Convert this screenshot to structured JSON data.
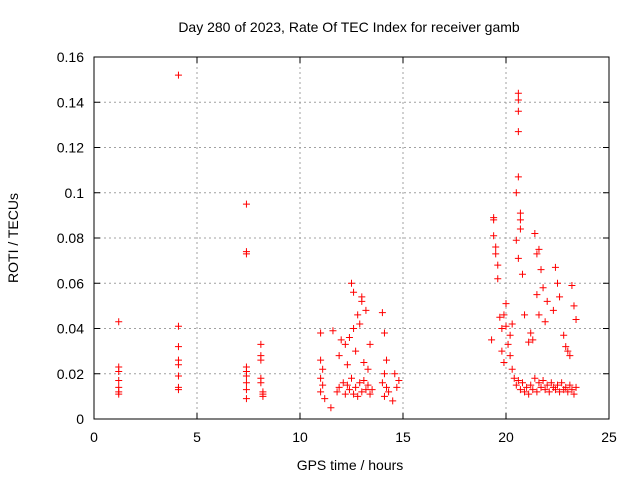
{
  "chart_data": {
    "type": "scatter",
    "title": "Day 280 of 2023, Rate Of TEC Index for receiver gamb",
    "xlabel": "GPS time / hours",
    "ylabel": "ROTI / TECUs",
    "xlim": [
      0,
      25
    ],
    "ylim": [
      0,
      0.16
    ],
    "x_ticks": [
      0,
      5,
      10,
      15,
      20,
      25
    ],
    "y_ticks": [
      0,
      0.02,
      0.04,
      0.06,
      0.08,
      0.1,
      0.12,
      0.14,
      0.16
    ],
    "x_tick_labels": [
      "0",
      "5",
      "10",
      "15",
      "20",
      "25"
    ],
    "y_tick_labels": [
      "0",
      "0.02",
      "0.04",
      "0.06",
      "0.08",
      "0.1",
      "0.12",
      "0.14",
      "0.16"
    ],
    "grid": true,
    "legend": "none",
    "marker": "+",
    "marker_color": "#ff0000",
    "series": [
      {
        "x": [
          1.2,
          1.2,
          1.2,
          1.2,
          1.2,
          1.2,
          1.2,
          4.1,
          4.1,
          4.1,
          4.1,
          4.1,
          4.1,
          4.1,
          4.1,
          7.4,
          7.4,
          7.4,
          7.4,
          7.4,
          7.4,
          7.4,
          7.4,
          7.4,
          8.1,
          8.1,
          8.1,
          8.1,
          8.1,
          8.2,
          8.2,
          8.2,
          11.0,
          11.0,
          11.1,
          11.0,
          11.1,
          11.0,
          11.2,
          11.5,
          11.6,
          11.8,
          11.9,
          12.0,
          12.1,
          12.2,
          12.3,
          12.4,
          12.5,
          12.6,
          12.7,
          12.8,
          12.9,
          13.0,
          13.1,
          13.2,
          13.3,
          13.4,
          13.5,
          12.5,
          12.6,
          12.8,
          13.0,
          13.2,
          12.4,
          12.7,
          13.1,
          13.3,
          12.9,
          12.2,
          12.6,
          13.0,
          13.4,
          11.9,
          12.3,
          14.0,
          14.1,
          14.2,
          14.1,
          14.0,
          14.2,
          14.3,
          14.1,
          14.6,
          14.8,
          14.7,
          14.5,
          19.3,
          19.4,
          19.5,
          19.6,
          19.7,
          19.8,
          19.9,
          20.0,
          20.1,
          20.2,
          20.3,
          20.4,
          20.5,
          20.6,
          20.7,
          20.8,
          20.9,
          21.0,
          21.1,
          21.2,
          21.3,
          21.4,
          21.5,
          21.6,
          21.7,
          21.8,
          21.9,
          22.0,
          22.1,
          22.2,
          22.3,
          22.4,
          22.5,
          22.6,
          22.7,
          22.8,
          22.9,
          23.0,
          23.1,
          23.2,
          23.3,
          23.4,
          20.6,
          20.6,
          20.6,
          20.6,
          20.6,
          20.7,
          20.7,
          20.5,
          20.7,
          19.4,
          19.4,
          19.5,
          19.6,
          20.5,
          20.6,
          20.8,
          21.4,
          21.5,
          21.6,
          21.7,
          21.8,
          21.5,
          21.6,
          22.4,
          22.5,
          22.6,
          23.2,
          23.3,
          23.4,
          22.3,
          22.0,
          21.9,
          21.2,
          21.1,
          19.8,
          19.9,
          20.0,
          20.2,
          20.3,
          20.9,
          21.3,
          22.8,
          22.9,
          23.0,
          23.1
        ],
        "y": [
          0.043,
          0.023,
          0.021,
          0.017,
          0.014,
          0.012,
          0.011,
          0.152,
          0.041,
          0.032,
          0.026,
          0.024,
          0.019,
          0.014,
          0.013,
          0.095,
          0.074,
          0.073,
          0.023,
          0.021,
          0.019,
          0.016,
          0.013,
          0.009,
          0.033,
          0.028,
          0.026,
          0.018,
          0.016,
          0.012,
          0.011,
          0.01,
          0.038,
          0.026,
          0.022,
          0.018,
          0.015,
          0.012,
          0.009,
          0.005,
          0.039,
          0.012,
          0.014,
          0.035,
          0.016,
          0.011,
          0.015,
          0.013,
          0.018,
          0.011,
          0.014,
          0.01,
          0.016,
          0.012,
          0.017,
          0.013,
          0.015,
          0.011,
          0.013,
          0.06,
          0.056,
          0.046,
          0.052,
          0.048,
          0.036,
          0.03,
          0.025,
          0.022,
          0.042,
          0.033,
          0.04,
          0.054,
          0.033,
          0.028,
          0.024,
          0.047,
          0.038,
          0.026,
          0.02,
          0.016,
          0.014,
          0.012,
          0.01,
          0.02,
          0.017,
          0.014,
          0.008,
          0.035,
          0.089,
          0.076,
          0.062,
          0.045,
          0.03,
          0.025,
          0.041,
          0.033,
          0.028,
          0.022,
          0.018,
          0.015,
          0.017,
          0.013,
          0.016,
          0.012,
          0.014,
          0.011,
          0.015,
          0.013,
          0.018,
          0.012,
          0.016,
          0.014,
          0.017,
          0.013,
          0.015,
          0.012,
          0.016,
          0.014,
          0.013,
          0.015,
          0.012,
          0.016,
          0.013,
          0.014,
          0.012,
          0.015,
          0.013,
          0.011,
          0.014,
          0.144,
          0.141,
          0.136,
          0.127,
          0.107,
          0.091,
          0.088,
          0.1,
          0.084,
          0.088,
          0.081,
          0.073,
          0.068,
          0.079,
          0.071,
          0.064,
          0.082,
          0.073,
          0.075,
          0.066,
          0.058,
          0.055,
          0.046,
          0.067,
          0.06,
          0.054,
          0.059,
          0.05,
          0.044,
          0.048,
          0.052,
          0.043,
          0.038,
          0.034,
          0.04,
          0.046,
          0.051,
          0.037,
          0.042,
          0.046,
          0.035,
          0.037,
          0.032,
          0.03,
          0.028
        ]
      }
    ]
  }
}
